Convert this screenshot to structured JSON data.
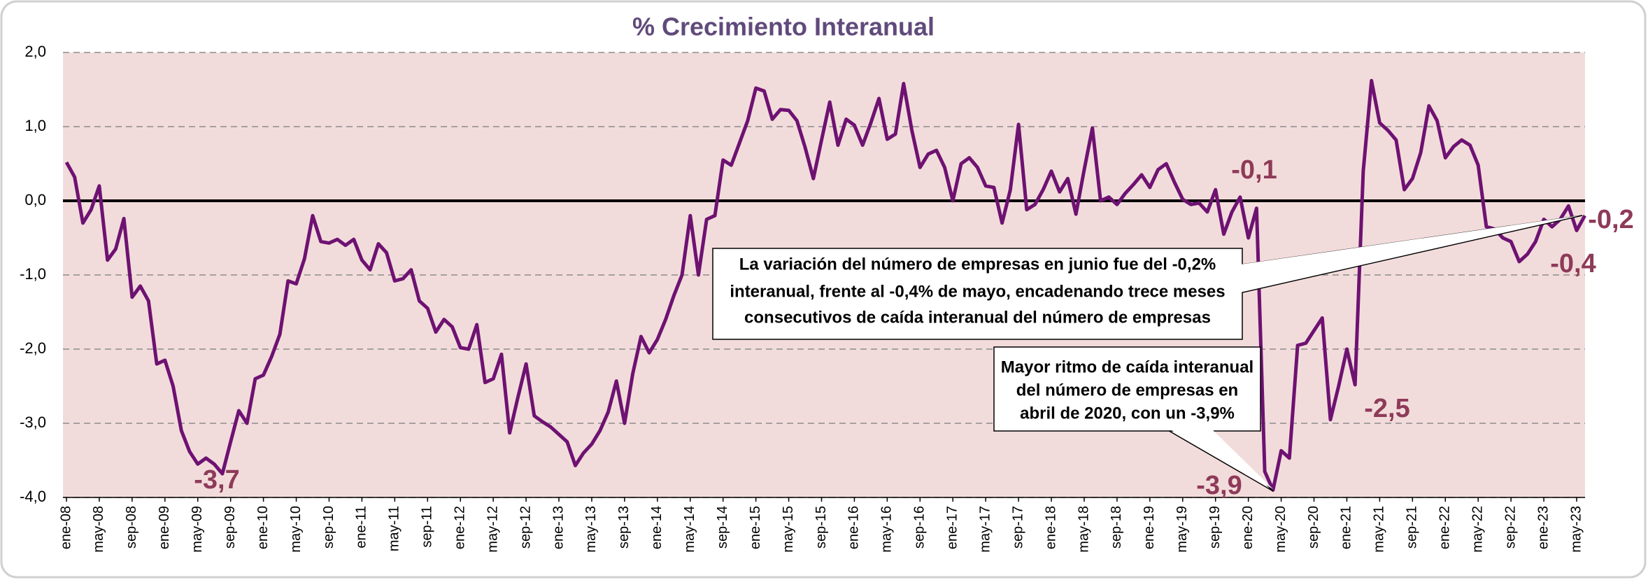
{
  "chart_data": {
    "type": "line",
    "title": "% Crecimiento Interanual",
    "categories": [
      "ene-08",
      null,
      null,
      null,
      "may-08",
      null,
      null,
      null,
      "sep-08",
      null,
      null,
      null,
      "ene-09",
      null,
      null,
      null,
      "may-09",
      null,
      null,
      null,
      "sep-09",
      null,
      null,
      null,
      "ene-10",
      null,
      null,
      null,
      "may-10",
      null,
      null,
      null,
      "sep-10",
      null,
      null,
      null,
      "ene-11",
      null,
      null,
      null,
      "may-11",
      null,
      null,
      null,
      "sep-11",
      null,
      null,
      null,
      "ene-12",
      null,
      null,
      null,
      "may-12",
      null,
      null,
      null,
      "sep-12",
      null,
      null,
      null,
      "ene-13",
      null,
      null,
      null,
      "may-13",
      null,
      null,
      null,
      "sep-13",
      null,
      null,
      null,
      "ene-14",
      null,
      null,
      null,
      "may-14",
      null,
      null,
      null,
      "sep-14",
      null,
      null,
      null,
      "ene-15",
      null,
      null,
      null,
      "may-15",
      null,
      null,
      null,
      "sep-15",
      null,
      null,
      null,
      "ene-16",
      null,
      null,
      null,
      "may-16",
      null,
      null,
      null,
      "sep-16",
      null,
      null,
      null,
      "ene-17",
      null,
      null,
      null,
      "may-17",
      null,
      null,
      null,
      "sep-17",
      null,
      null,
      null,
      "ene-18",
      null,
      null,
      null,
      "may-18",
      null,
      null,
      null,
      "sep-18",
      null,
      null,
      null,
      "ene-19",
      null,
      null,
      null,
      "may-19",
      null,
      null,
      null,
      "sep-19",
      null,
      null,
      null,
      "ene-20",
      null,
      null,
      null,
      "may-20",
      null,
      null,
      null,
      "sep-20",
      null,
      null,
      null,
      "ene-21",
      null,
      null,
      null,
      "may-21",
      null,
      null,
      null,
      "sep-21",
      null,
      null,
      null,
      "ene-22",
      null,
      null,
      null,
      "may-22",
      null,
      null,
      null,
      "sep-22",
      null,
      null,
      null,
      "ene-23",
      null,
      null,
      null,
      "may-23",
      null
    ],
    "series": [
      {
        "color": "#6e1272",
        "values": [
          0.52,
          0.32,
          -0.3,
          -0.12,
          0.2,
          -0.8,
          -0.65,
          -0.24,
          -1.3,
          -1.15,
          -1.35,
          -2.2,
          -2.15,
          -2.5,
          -3.1,
          -3.38,
          -3.55,
          -3.47,
          -3.55,
          -3.68,
          -3.25,
          -2.83,
          -3.0,
          -2.4,
          -2.35,
          -2.1,
          -1.8,
          -1.08,
          -1.12,
          -0.78,
          -0.2,
          -0.55,
          -0.57,
          -0.52,
          -0.6,
          -0.52,
          -0.8,
          -0.93,
          -0.58,
          -0.7,
          -1.08,
          -1.05,
          -0.93,
          -1.35,
          -1.45,
          -1.77,
          -1.6,
          -1.7,
          -1.98,
          -2.0,
          -1.67,
          -2.45,
          -2.4,
          -2.07,
          -3.13,
          -2.65,
          -2.2,
          -2.9,
          -2.98,
          -3.05,
          -3.15,
          -3.25,
          -3.57,
          -3.4,
          -3.28,
          -3.1,
          -2.85,
          -2.43,
          -3.0,
          -2.33,
          -1.83,
          -2.05,
          -1.87,
          -1.6,
          -1.28,
          -1.0,
          -0.2,
          -1.0,
          -0.25,
          -0.2,
          0.55,
          0.48,
          0.78,
          1.08,
          1.52,
          1.48,
          1.1,
          1.23,
          1.22,
          1.08,
          0.72,
          0.3,
          0.82,
          1.33,
          0.75,
          1.1,
          1.02,
          0.75,
          1.05,
          1.38,
          0.83,
          0.9,
          1.58,
          0.95,
          0.45,
          0.63,
          0.68,
          0.45,
          0.0,
          0.5,
          0.58,
          0.45,
          0.2,
          0.18,
          -0.3,
          0.15,
          1.03,
          -0.12,
          -0.05,
          0.15,
          0.4,
          0.12,
          0.3,
          -0.18,
          0.42,
          0.98,
          0.0,
          0.05,
          -0.05,
          0.1,
          0.22,
          0.35,
          0.18,
          0.42,
          0.5,
          0.25,
          0.02,
          -0.05,
          -0.03,
          -0.15,
          0.15,
          -0.45,
          -0.15,
          0.05,
          -0.5,
          -0.1,
          -3.65,
          -3.9,
          -3.37,
          -3.47,
          -1.95,
          -1.92,
          -1.75,
          -1.58,
          -2.95,
          -2.5,
          -2.0,
          -2.48,
          0.4,
          1.62,
          1.05,
          0.95,
          0.82,
          0.15,
          0.3,
          0.65,
          1.28,
          1.08,
          0.58,
          0.73,
          0.82,
          0.75,
          0.48,
          -0.35,
          -0.38,
          -0.5,
          -0.55,
          -0.82,
          -0.72,
          -0.55,
          -0.25,
          -0.35,
          -0.25,
          -0.07,
          -0.4,
          -0.2
        ]
      }
    ],
    "ylim": [
      -4,
      2
    ],
    "yticks": [
      {
        "value": -4,
        "label": "-4,0"
      },
      {
        "value": -3,
        "label": "-3,0"
      },
      {
        "value": -2,
        "label": "-2,0"
      },
      {
        "value": -1,
        "label": "-1,0"
      },
      {
        "value": 0,
        "label": "0,0"
      },
      {
        "value": 1,
        "label": "1,0"
      },
      {
        "value": 2,
        "label": "2,0"
      }
    ],
    "grid": true,
    "annotations": [
      "-3,7",
      "-0,1",
      "-2,5",
      "-3,9",
      "-0,4",
      "-0,2"
    ],
    "callouts": [
      [
        "La variación del número de empresas  en junio fue del -0,2%",
        "interanual, frente al -0,4% de mayo, encadenando trece meses",
        "consecutivos de caída interanual del número de empresas"
      ],
      [
        "Mayor ritmo de caída interanual",
        "del número de empresas en",
        "abril de 2020,  con un -3,9%"
      ]
    ]
  }
}
